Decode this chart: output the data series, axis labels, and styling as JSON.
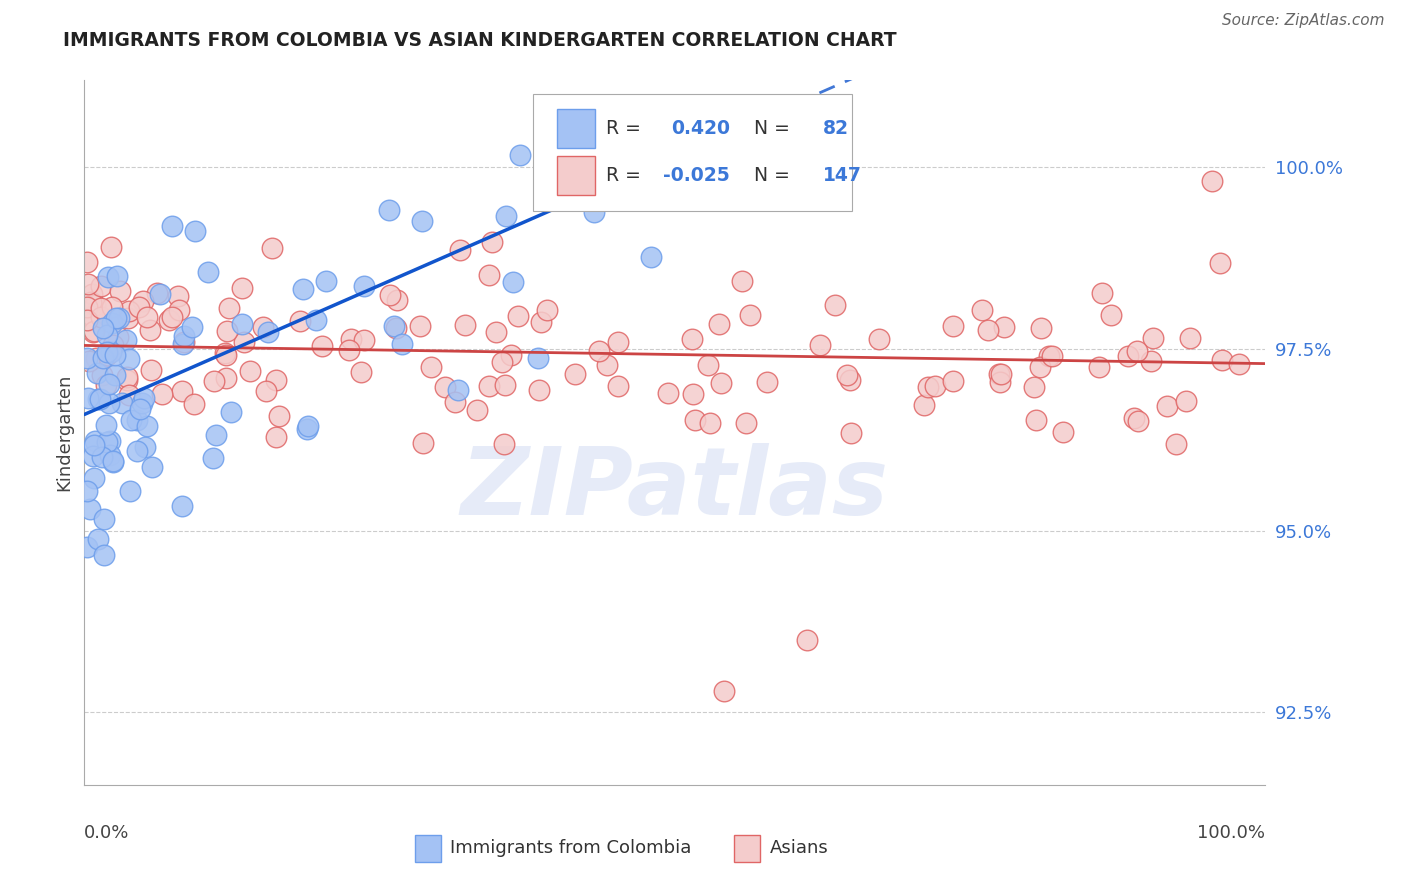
{
  "title": "IMMIGRANTS FROM COLOMBIA VS ASIAN KINDERGARTEN CORRELATION CHART",
  "source": "Source: ZipAtlas.com",
  "ylabel": "Kindergarten",
  "ytick_values": [
    92.5,
    95.0,
    97.5,
    100.0
  ],
  "ytick_labels": [
    "92.5%",
    "95.0%",
    "97.5%",
    "100.0%"
  ],
  "xlim": [
    0.0,
    100.0
  ],
  "ylim": [
    91.5,
    101.2
  ],
  "blue_R": 0.42,
  "blue_N": 82,
  "pink_R": -0.025,
  "pink_N": 147,
  "blue_color": "#a4c2f4",
  "blue_edge": "#6d9eeb",
  "pink_color": "#f4cccc",
  "pink_edge": "#e06666",
  "blue_line_color": "#1155cc",
  "pink_line_color": "#cc4444",
  "legend_label_blue": "Immigrants from Colombia",
  "legend_label_pink": "Asians",
  "watermark": "ZIPatlas",
  "blue_trend_x0": 0.0,
  "blue_trend_y0": 96.6,
  "blue_trend_x1": 45.0,
  "blue_trend_y1": 99.8,
  "pink_trend_x0": 0.0,
  "pink_trend_y0": 97.55,
  "pink_trend_x1": 100.0,
  "pink_trend_y1": 97.3
}
